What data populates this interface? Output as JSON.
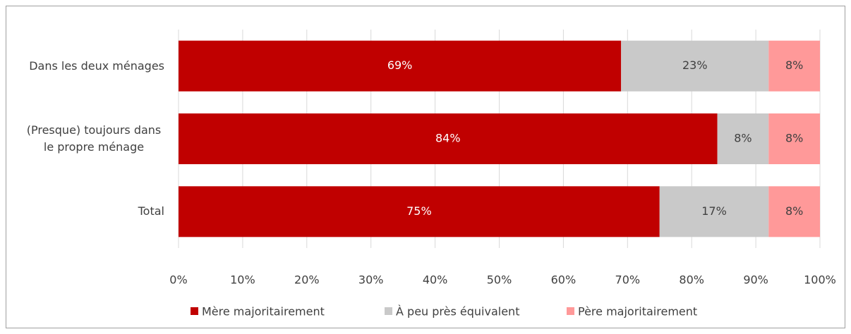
{
  "chart_data": {
    "type": "stacked-barh",
    "categories": [
      "Dans les deux ménages",
      "(Presque) toujours dans le propre ménage",
      "Total"
    ],
    "series": [
      {
        "name": "Mère majoritairement",
        "color": "#c00000",
        "values": [
          69,
          84,
          75
        ],
        "value_labels": [
          "69%",
          "84%",
          "75%"
        ]
      },
      {
        "name": "À peu près équivalent",
        "color": "#c9c9c9",
        "values": [
          23,
          8,
          17
        ],
        "value_labels": [
          "23%",
          "8%",
          "17%"
        ]
      },
      {
        "name": "Père majoritairement",
        "color": "#ff9999",
        "values": [
          8,
          8,
          8
        ],
        "value_labels": [
          "8%",
          "8%",
          "8%"
        ]
      }
    ],
    "xlim": [
      0,
      100
    ],
    "xticks": [
      {
        "value": 0,
        "label": "0%"
      },
      {
        "value": 10,
        "label": "10%"
      },
      {
        "value": 20,
        "label": "20%"
      },
      {
        "value": 30,
        "label": "30%"
      },
      {
        "value": 40,
        "label": "40%"
      },
      {
        "value": 50,
        "label": "50%"
      },
      {
        "value": 60,
        "label": "60%"
      },
      {
        "value": 70,
        "label": "70%"
      },
      {
        "value": 80,
        "label": "80%"
      },
      {
        "value": 90,
        "label": "90%"
      },
      {
        "value": 100,
        "label": "100%"
      }
    ],
    "grid": true,
    "legend": "bottom"
  }
}
